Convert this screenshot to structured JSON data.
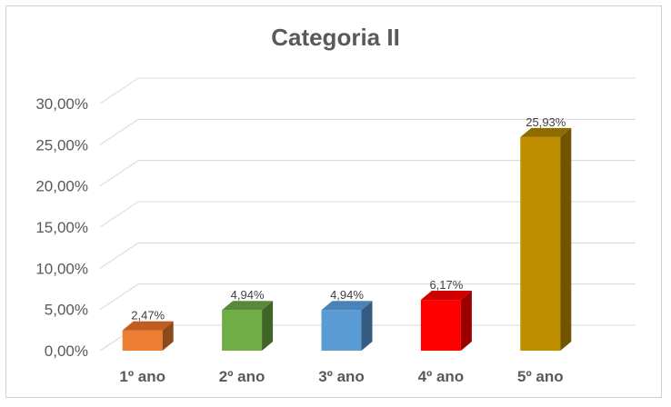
{
  "chart_data": {
    "type": "bar",
    "title": "Categoria II",
    "categories": [
      "1º ano",
      "2º ano",
      "3º ano",
      "4º ano",
      "5º ano"
    ],
    "values": [
      2.47,
      4.94,
      4.94,
      6.17,
      25.93
    ],
    "data_labels": [
      "2,47%",
      "4,94%",
      "4,94%",
      "6,17%",
      "25,93%"
    ],
    "y_ticks": [
      {
        "value": 0,
        "label": "0,00%"
      },
      {
        "value": 5,
        "label": "5,00%"
      },
      {
        "value": 10,
        "label": "10,00%"
      },
      {
        "value": 15,
        "label": "15,00%"
      },
      {
        "value": 20,
        "label": "20,00%"
      },
      {
        "value": 25,
        "label": "25,00%"
      },
      {
        "value": 30,
        "label": "30,00%"
      }
    ],
    "ylim": [
      0,
      30
    ],
    "xlabel": "",
    "ylabel": "",
    "grid": true,
    "style": "3d-column",
    "colors": {
      "front": [
        "#ED7D31",
        "#70AD47",
        "#5B9BD5",
        "#FF0000",
        "#BF8F00"
      ],
      "side": [
        "#8C4A1A",
        "#3F6428",
        "#355C80",
        "#9B0000",
        "#705400"
      ],
      "top": [
        "#C05E22",
        "#58893A",
        "#4A83B8",
        "#CF0000",
        "#8F6B00"
      ],
      "gridline": "#d9d9d9",
      "text": "#595959"
    }
  }
}
